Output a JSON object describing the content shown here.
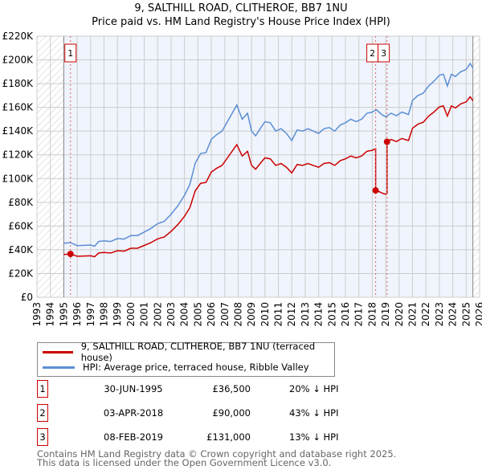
{
  "chart_data": {
    "type": "line",
    "title": "9, SALTHILL ROAD, CLITHEROE, BB7 1NU",
    "subtitle": "Price paid vs. HM Land Registry's House Price Index (HPI)",
    "xlabel": "",
    "ylabel": "",
    "xlim": [
      1993,
      2026
    ],
    "ylim": [
      0,
      220000
    ],
    "yticks": [
      {
        "v": 0,
        "label": "£0"
      },
      {
        "v": 20000,
        "label": "£20K"
      },
      {
        "v": 40000,
        "label": "£40K"
      },
      {
        "v": 60000,
        "label": "£60K"
      },
      {
        "v": 80000,
        "label": "£80K"
      },
      {
        "v": 100000,
        "label": "£100K"
      },
      {
        "v": 120000,
        "label": "£120K"
      },
      {
        "v": 140000,
        "label": "£140K"
      },
      {
        "v": 160000,
        "label": "£160K"
      },
      {
        "v": 180000,
        "label": "£180K"
      },
      {
        "v": 200000,
        "label": "£200K"
      },
      {
        "v": 220000,
        "label": "£220K"
      }
    ],
    "xticks": [
      "1993",
      "1994",
      "1995",
      "1996",
      "1997",
      "1998",
      "1999",
      "2000",
      "2001",
      "2002",
      "2003",
      "2004",
      "2005",
      "2006",
      "2007",
      "2008",
      "2009",
      "2010",
      "2011",
      "2012",
      "2013",
      "2014",
      "2015",
      "2016",
      "2017",
      "2018",
      "2019",
      "2020",
      "2021",
      "2022",
      "2023",
      "2024",
      "2025",
      "2026"
    ],
    "grid": true,
    "data_range": [
      1995,
      2025.5
    ],
    "series": [
      {
        "name": "HPI: Average price, terraced house, Ribble Valley",
        "color": "#5b8fd4",
        "x": [
          1995,
          1995.5,
          1996,
          1997,
          1997.3,
          1997.6,
          1998,
          1998.5,
          1999,
          1999.5,
          2000,
          2000.5,
          2001,
          2001.5,
          2002,
          2002.5,
          2003,
          2003.5,
          2004,
          2004.4,
          2004.8,
          2005.2,
          2005.6,
          2006,
          2006.4,
          2006.8,
          2007.2,
          2007.6,
          2007.9,
          2008.3,
          2008.7,
          2009,
          2009.3,
          2009.7,
          2010,
          2010.4,
          2010.8,
          2011.2,
          2011.6,
          2012,
          2012.4,
          2012.8,
          2013.2,
          2013.6,
          2014,
          2014.4,
          2014.8,
          2015.2,
          2015.6,
          2016,
          2016.4,
          2016.8,
          2017.2,
          2017.6,
          2018,
          2018.3,
          2018.7,
          2019,
          2019.4,
          2019.8,
          2020.2,
          2020.7,
          2021,
          2021.4,
          2021.8,
          2022.2,
          2022.6,
          2023,
          2023.3,
          2023.6,
          2023.9,
          2024.2,
          2024.6,
          2025,
          2025.3,
          2025.5
        ],
        "y": [
          45500,
          46000,
          43500,
          44000,
          43000,
          47000,
          47500,
          47000,
          49500,
          49000,
          52000,
          52000,
          55000,
          58000,
          62000,
          64000,
          70000,
          77000,
          86000,
          95000,
          113000,
          121000,
          122000,
          133000,
          137000,
          140000,
          148000,
          156000,
          162000,
          150000,
          155000,
          140000,
          136000,
          143000,
          148000,
          147000,
          140000,
          142000,
          138000,
          132000,
          141000,
          140000,
          142000,
          140000,
          138000,
          142000,
          143000,
          140000,
          145000,
          147000,
          150000,
          148000,
          150000,
          155000,
          156000,
          158000,
          154000,
          152000,
          155000,
          153000,
          156000,
          154000,
          166000,
          170000,
          172000,
          178000,
          182000,
          187000,
          188000,
          178000,
          188000,
          186000,
          190000,
          192000,
          197000,
          193000
        ]
      },
      {
        "name": "9, SALTHILL ROAD, CLITHEROE, BB7 1NU (terraced house)",
        "color": "#cc0000",
        "derived_from": "HPI indexed from each sale"
      }
    ],
    "legend_position": "below",
    "transactions": [
      {
        "id": "1",
        "year": 1995.5,
        "date": "30-JUN-1995",
        "price": 36500,
        "price_label": "£36,500",
        "hpi_diff": "20% ↓ HPI"
      },
      {
        "id": "2",
        "year": 2018.25,
        "date": "03-APR-2018",
        "price": 90000,
        "price_label": "£90,000",
        "hpi_diff": "43% ↓ HPI"
      },
      {
        "id": "3",
        "year": 2019.1,
        "date": "08-FEB-2019",
        "price": 131000,
        "price_label": "£131,000",
        "hpi_diff": "13% ↓ HPI"
      }
    ]
  },
  "legend": {
    "property": "9, SALTHILL ROAD, CLITHEROE, BB7 1NU (terraced house)",
    "hpi": "HPI: Average price, terraced house, Ribble Valley"
  },
  "footer": {
    "line1": "Contains HM Land Registry data © Crown copyright and database right 2025.",
    "line2": "This data is licensed under the Open Government Licence v3.0."
  }
}
